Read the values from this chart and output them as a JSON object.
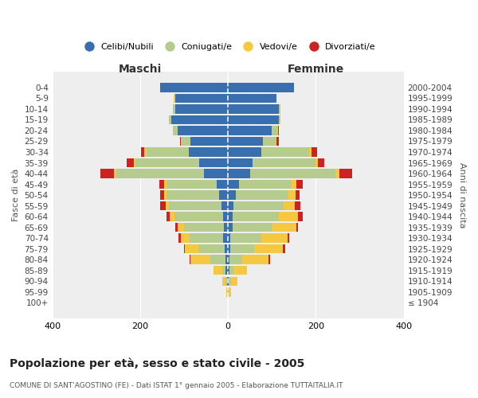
{
  "age_groups": [
    "100+",
    "95-99",
    "90-94",
    "85-89",
    "80-84",
    "75-79",
    "70-74",
    "65-69",
    "60-64",
    "55-59",
    "50-54",
    "45-49",
    "40-44",
    "35-39",
    "30-34",
    "25-29",
    "20-24",
    "15-19",
    "10-14",
    "5-9",
    "0-4"
  ],
  "birth_years": [
    "≤ 1904",
    "1905-1909",
    "1910-1914",
    "1915-1919",
    "1920-1924",
    "1925-1929",
    "1930-1934",
    "1935-1939",
    "1940-1944",
    "1945-1949",
    "1950-1954",
    "1955-1959",
    "1960-1964",
    "1965-1969",
    "1970-1974",
    "1975-1979",
    "1980-1984",
    "1985-1989",
    "1990-1994",
    "1995-1999",
    "2000-2004"
  ],
  "maschi": {
    "celibi": [
      0,
      1,
      2,
      5,
      5,
      8,
      12,
      10,
      12,
      14,
      20,
      25,
      55,
      65,
      90,
      85,
      115,
      130,
      120,
      120,
      155
    ],
    "coniugati": [
      0,
      1,
      3,
      8,
      35,
      60,
      75,
      90,
      110,
      120,
      120,
      115,
      200,
      145,
      95,
      20,
      10,
      5,
      5,
      0,
      0
    ],
    "vedovi": [
      0,
      2,
      8,
      20,
      45,
      30,
      20,
      15,
      10,
      8,
      5,
      5,
      5,
      5,
      5,
      2,
      0,
      0,
      0,
      3,
      0
    ],
    "divorziati": [
      0,
      0,
      0,
      0,
      2,
      3,
      5,
      5,
      8,
      12,
      10,
      12,
      30,
      15,
      8,
      3,
      0,
      0,
      0,
      0,
      0
    ]
  },
  "femmine": {
    "nubili": [
      0,
      0,
      1,
      3,
      3,
      5,
      5,
      10,
      10,
      12,
      18,
      25,
      50,
      55,
      75,
      80,
      100,
      115,
      115,
      110,
      150
    ],
    "coniugate": [
      0,
      2,
      5,
      10,
      30,
      55,
      70,
      90,
      105,
      115,
      120,
      120,
      195,
      145,
      110,
      28,
      12,
      5,
      5,
      0,
      0
    ],
    "vedove": [
      0,
      5,
      15,
      30,
      60,
      65,
      60,
      55,
      45,
      25,
      15,
      10,
      8,
      5,
      5,
      3,
      2,
      0,
      0,
      0,
      0
    ],
    "divorziate": [
      0,
      0,
      0,
      0,
      3,
      5,
      5,
      5,
      10,
      12,
      10,
      15,
      30,
      15,
      12,
      5,
      2,
      0,
      0,
      0,
      0
    ]
  },
  "colors": {
    "celibi_nubili": "#3a6faf",
    "coniugati_e": "#b5cc8e",
    "vedovi_e": "#f5c842",
    "divorziati_e": "#cc2222"
  },
  "title": "Popolazione per età, sesso e stato civile - 2005",
  "subtitle": "COMUNE DI SANT'AGOSTINO (FE) - Dati ISTAT 1° gennaio 2005 - Elaborazione TUTTAITALIA.IT",
  "xlabel_left": "Maschi",
  "xlabel_right": "Femmine",
  "ylabel_left": "Fasce di età",
  "ylabel_right": "Anni di nascita",
  "xlim": 400,
  "background_color": "#ffffff",
  "legend_labels": [
    "Celibi/Nubili",
    "Coniugati/e",
    "Vedovi/e",
    "Divorziati/e"
  ]
}
